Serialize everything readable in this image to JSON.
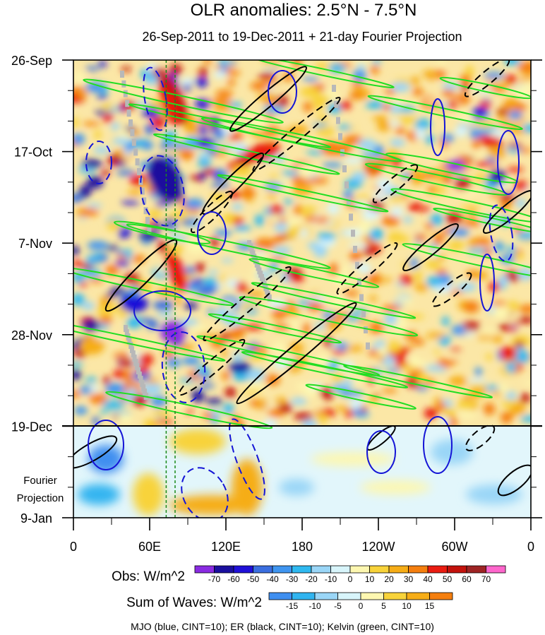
{
  "chart_data": {
    "type": "heatmap",
    "title": "OLR anomalies: 2.5°N - 7.5°N",
    "subtitle": "26-Sep-2011 to 19-Dec-2011 + 21-day Fourier Projection",
    "y_tick_labels": [
      "26-Sep",
      "17-Oct",
      "7-Nov",
      "28-Nov",
      "19-Dec",
      "9-Jan"
    ],
    "projection_label_line1": "Fourier",
    "projection_label_line2": "Projection",
    "x_tick_labels": [
      "0",
      "60E",
      "120E",
      "180",
      "120W",
      "60W",
      "0"
    ],
    "x_range_deg_east": [
      0,
      360
    ],
    "x_tick_values_deg_east": [
      0,
      60,
      120,
      180,
      240,
      300,
      360
    ],
    "y_tick_values_days_from_start": [
      0,
      21,
      42,
      63,
      84,
      105
    ],
    "y_range_days": [
      0,
      105
    ],
    "observation_end_day": 84,
    "colorbar_obs": {
      "label": "Obs: W/m^2",
      "levels": [
        "-70",
        "-60",
        "-50",
        "-40",
        "-30",
        "-20",
        "-10",
        "0",
        "10",
        "20",
        "30",
        "40",
        "50",
        "60",
        "70"
      ],
      "colors": [
        "#8a2be2",
        "#1a0f9e",
        "#1f10d8",
        "#3b6fe0",
        "#3f95f0",
        "#2fb9f0",
        "#9ad6f7",
        "#d8f5fb",
        "#fdf7b0",
        "#f8d33a",
        "#f6ad17",
        "#f57f0e",
        "#ea1c11",
        "#c3120c",
        "#9e2424",
        "#ff66cc"
      ]
    },
    "colorbar_waves": {
      "label": "Sum of Waves: W/m^2",
      "levels": [
        "-15",
        "-10",
        "-5",
        "0",
        "5",
        "10",
        "15"
      ],
      "colors": [
        "#3f8ff0",
        "#30b4f0",
        "#9ad6f7",
        "#d8f5fb",
        "#fdf7b0",
        "#f8d33a",
        "#f6ad17",
        "#f57f0e"
      ]
    },
    "caption": "MJO (blue, CINT=10); ER (black, CINT=10); Kelvin (green, CINT=10)",
    "contour_colors": {
      "mjo": "#1515d6",
      "er": "#000000",
      "kelvin": "#22dd22"
    }
  }
}
